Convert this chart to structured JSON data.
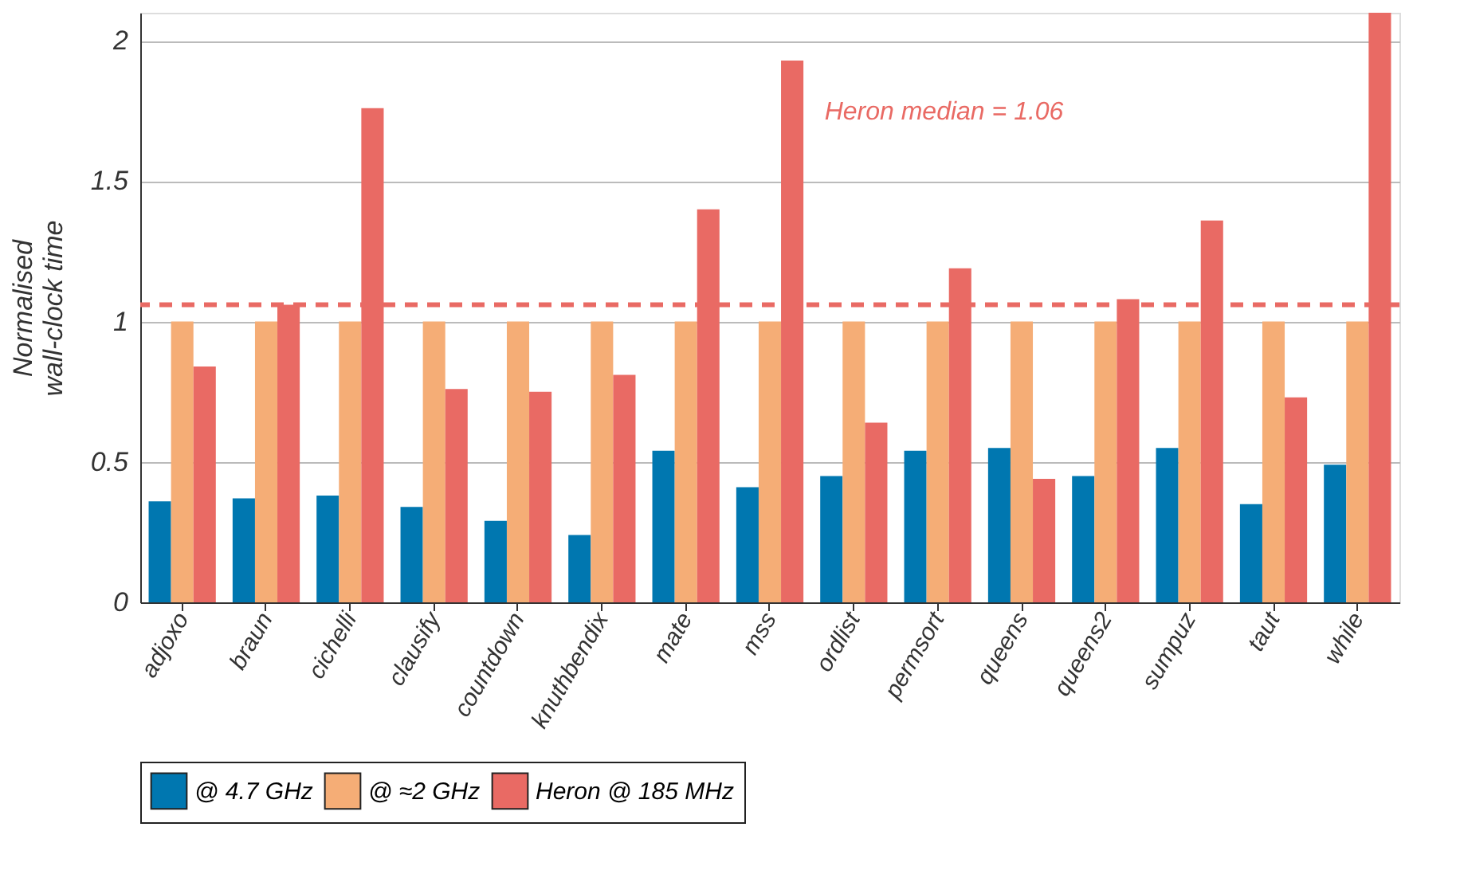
{
  "chart_data": {
    "type": "bar",
    "ylabel": "Normalised\nwall-clock time",
    "categories": [
      "adjoxo",
      "braun",
      "cichelli",
      "clausify",
      "countdown",
      "knuthbendix",
      "mate",
      "mss",
      "ordlist",
      "permsort",
      "queens",
      "queens2",
      "sumpuz",
      "taut",
      "while"
    ],
    "series": [
      {
        "name": "@ 4.7 GHz",
        "color": "#0077b0",
        "values": [
          0.36,
          0.37,
          0.38,
          0.34,
          0.29,
          0.24,
          0.54,
          0.41,
          0.45,
          0.54,
          0.55,
          0.45,
          0.55,
          0.35,
          0.49
        ]
      },
      {
        "name": "@ ≈2 GHz",
        "color": "#f5ad76",
        "values": [
          1,
          1,
          1,
          1,
          1,
          1,
          1,
          1,
          1,
          1,
          1,
          1,
          1,
          1,
          1
        ]
      },
      {
        "name": "Heron @ 185 MHz",
        "color": "#e96a64",
        "values": [
          0.84,
          1.06,
          1.76,
          0.76,
          0.75,
          0.81,
          1.4,
          1.93,
          0.64,
          1.19,
          0.44,
          1.08,
          1.36,
          0.73,
          2.1
        ]
      }
    ],
    "ylim": [
      0,
      2.1
    ],
    "yticks": [
      0,
      0.5,
      1,
      1.5,
      2
    ],
    "grid": "y",
    "legend": "bottom",
    "ref_lines": [
      {
        "axis": "y",
        "value": 1.06,
        "label": "Heron median = 1.06",
        "color": "#e96a64",
        "line_style": "dashed"
      }
    ]
  }
}
